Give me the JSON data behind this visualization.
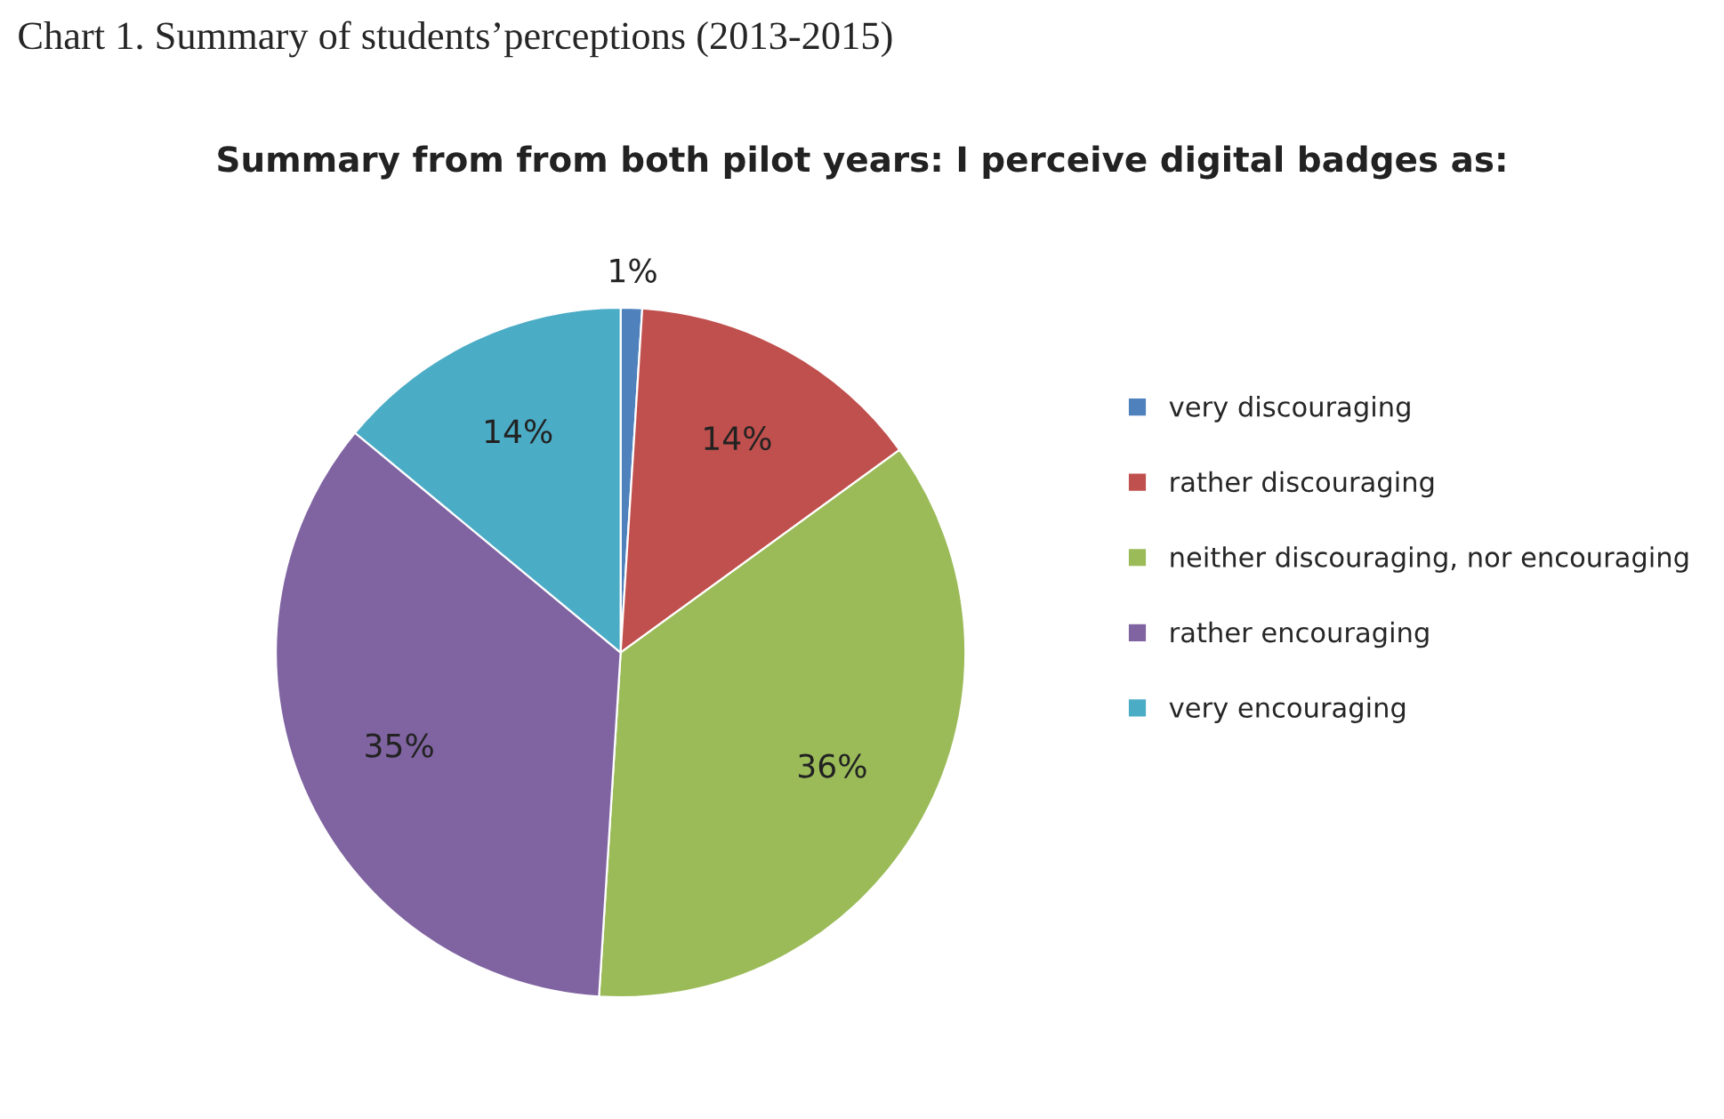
{
  "chart_data": {
    "type": "pie",
    "title": "Summary from from both pilot years: I perceive digital badges as:",
    "categories": [
      "very discouraging",
      "rather discouraging",
      "neither discouraging, nor encouraging",
      "rather encouraging",
      "very encouraging"
    ],
    "values": [
      1,
      14,
      36,
      35,
      14
    ],
    "value_labels": [
      "1%",
      "14%",
      "36%",
      "35%",
      "14%"
    ],
    "colors": [
      "#4f81bd",
      "#c0504d",
      "#9bbb59",
      "#8064a2",
      "#4bacc6"
    ],
    "legend": "right",
    "annotations": [
      "Chart 1. Summary of students’perceptions (2013-2015)"
    ]
  }
}
